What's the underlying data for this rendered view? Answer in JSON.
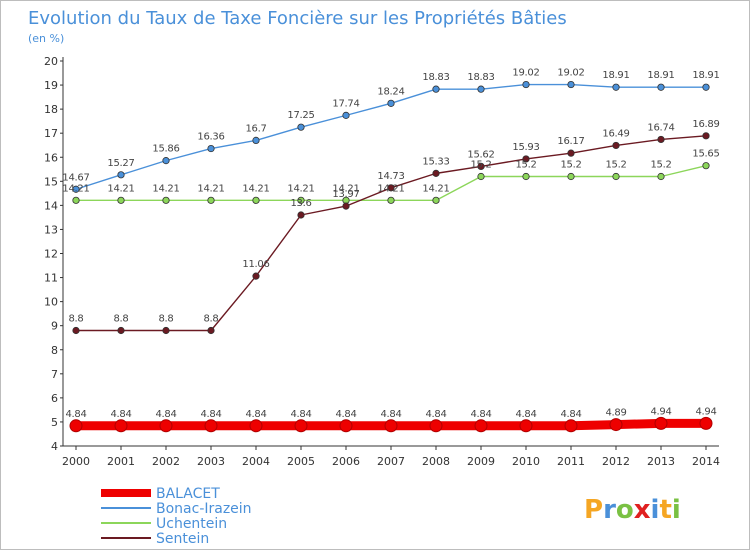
{
  "title": "Evolution du Taux de Taxe Foncière sur les Propriétés Bâties",
  "unit_label": "(en %)",
  "logo": {
    "text": "Proxiti"
  },
  "chart_data": {
    "type": "line",
    "title": "Evolution du Taux de Taxe Foncière sur les Propriétés Bâties",
    "ylabel": "(en %)",
    "xlabel": "",
    "x": [
      2000,
      2001,
      2002,
      2003,
      2004,
      2005,
      2006,
      2007,
      2008,
      2009,
      2010,
      2011,
      2012,
      2013,
      2014
    ],
    "ylim": [
      4,
      20
    ],
    "yticks": [
      4,
      5,
      6,
      7,
      8,
      9,
      10,
      11,
      12,
      13,
      14,
      15,
      16,
      17,
      18,
      19,
      20
    ],
    "grid": false,
    "legend_position": "bottom-left",
    "series": [
      {
        "name": "BALACET",
        "color": "#ee0000",
        "values": [
          4.84,
          4.84,
          4.84,
          4.84,
          4.84,
          4.84,
          4.84,
          4.84,
          4.84,
          4.84,
          4.84,
          4.84,
          4.89,
          4.94,
          4.94
        ]
      },
      {
        "name": "Bonac-Irazein",
        "color": "#4a90d9",
        "values": [
          14.67,
          15.27,
          15.86,
          16.36,
          16.7,
          17.25,
          17.74,
          18.24,
          18.83,
          18.83,
          19.02,
          19.02,
          18.91,
          18.91,
          18.91
        ]
      },
      {
        "name": "Uchentein",
        "color": "#8cd65a",
        "values": [
          14.21,
          14.21,
          14.21,
          14.21,
          14.21,
          14.21,
          14.21,
          14.21,
          14.21,
          15.2,
          15.2,
          15.2,
          15.2,
          15.2,
          15.65
        ]
      },
      {
        "name": "Sentein",
        "color": "#6b1a22",
        "values": [
          8.8,
          8.8,
          8.8,
          8.8,
          11.06,
          13.6,
          13.97,
          14.73,
          15.33,
          15.62,
          15.93,
          16.17,
          16.49,
          16.74,
          16.89
        ]
      }
    ]
  }
}
